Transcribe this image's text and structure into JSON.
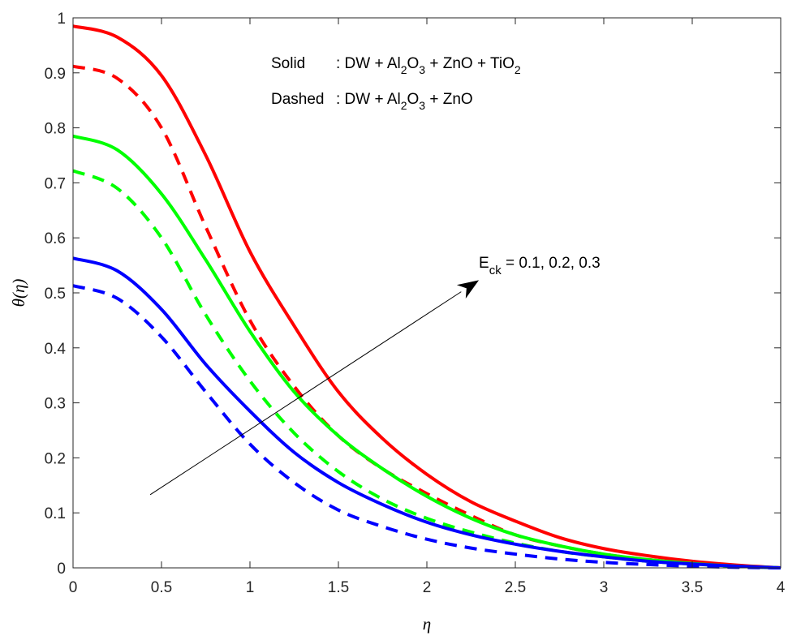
{
  "chart_data": {
    "type": "line",
    "title": "",
    "xlabel": "η",
    "ylabel": "θ(η)",
    "xlim": [
      0,
      4
    ],
    "ylim": [
      0,
      1
    ],
    "grid": false,
    "xticks": [
      "0",
      "0.5",
      "1",
      "1.5",
      "2",
      "2.5",
      "3",
      "3.5",
      "4"
    ],
    "yticks": [
      "0",
      "0.1",
      "0.2",
      "0.3",
      "0.4",
      "0.5",
      "0.6",
      "0.7",
      "0.8",
      "0.9",
      "1"
    ],
    "x": [
      0,
      0.25,
      0.5,
      0.75,
      1,
      1.25,
      1.5,
      1.75,
      2,
      2.25,
      2.5,
      2.75,
      3,
      3.25,
      3.5,
      3.75,
      4
    ],
    "series": [
      {
        "name": "Solid, Eck=0.3",
        "color": "#ff0000",
        "style": "solid",
        "values": [
          0.985,
          0.965,
          0.895,
          0.75,
          0.575,
          0.44,
          0.32,
          0.235,
          0.17,
          0.12,
          0.085,
          0.055,
          0.035,
          0.022,
          0.012,
          0.005,
          0
        ]
      },
      {
        "name": "Dashed, Eck=0.3",
        "color": "#ff0000",
        "style": "dashed",
        "values": [
          0.912,
          0.89,
          0.8,
          0.62,
          0.45,
          0.33,
          0.24,
          0.18,
          0.135,
          0.095,
          0.06,
          0.04,
          0.025,
          0.015,
          0.008,
          0.003,
          0
        ]
      },
      {
        "name": "Solid, Eck=0.2",
        "color": "#00ff00",
        "style": "solid",
        "values": [
          0.785,
          0.76,
          0.68,
          0.56,
          0.43,
          0.32,
          0.24,
          0.18,
          0.13,
          0.09,
          0.06,
          0.04,
          0.025,
          0.015,
          0.008,
          0.003,
          0
        ]
      },
      {
        "name": "Dashed, Eck=0.2",
        "color": "#00ff00",
        "style": "dashed",
        "values": [
          0.722,
          0.69,
          0.6,
          0.46,
          0.34,
          0.245,
          0.175,
          0.125,
          0.09,
          0.065,
          0.045,
          0.03,
          0.02,
          0.012,
          0.007,
          0.003,
          0
        ]
      },
      {
        "name": "Solid, Eck=0.1",
        "color": "#0000ff",
        "style": "solid",
        "values": [
          0.563,
          0.54,
          0.47,
          0.37,
          0.285,
          0.21,
          0.155,
          0.115,
          0.083,
          0.06,
          0.043,
          0.03,
          0.02,
          0.012,
          0.007,
          0.003,
          0
        ]
      },
      {
        "name": "Dashed, Eck=0.1",
        "color": "#0000ff",
        "style": "dashed",
        "values": [
          0.513,
          0.49,
          0.42,
          0.32,
          0.225,
          0.155,
          0.105,
          0.075,
          0.052,
          0.036,
          0.025,
          0.016,
          0.01,
          0.006,
          0.003,
          0.001,
          0
        ]
      }
    ],
    "annotations": {
      "solid_label": "Solid",
      "solid_desc_pre": ": DW + Al",
      "solid_desc_mid1": "O",
      "solid_desc_mid2": " + ZnO + TiO",
      "dashed_label": "Dashed",
      "dashed_desc_pre": ": DW + Al",
      "dashed_desc_mid": "O",
      "dashed_desc_post": " + ZnO",
      "sub2": "2",
      "sub3": "3",
      "arrow_label_main": "E",
      "arrow_label_sub": "ck",
      "arrow_label_values": " = 0.1, 0.2, 0.3",
      "arrow_from": [
        0.436,
        0.133
      ],
      "arrow_to": [
        2.294,
        0.523
      ]
    }
  }
}
